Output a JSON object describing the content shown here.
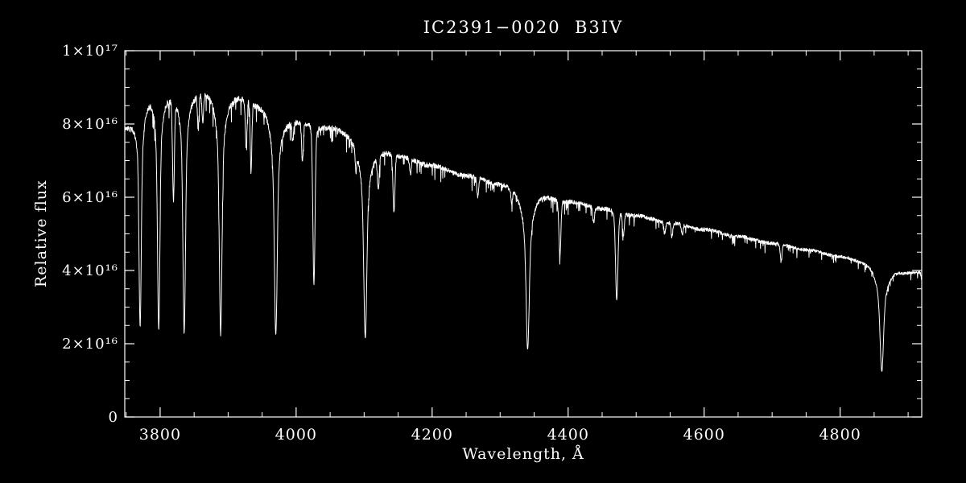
{
  "page": {
    "background": "#000000",
    "foreground": "#ffffff"
  },
  "chart_data": {
    "type": "line",
    "title": "IC2391−0020  B3IV",
    "xlabel": "Wavelength, Å",
    "ylabel": "Relative flux",
    "xlim": [
      3748,
      4920
    ],
    "ylim": [
      0,
      1e+17
    ],
    "grid": false,
    "legend": "none",
    "background": "#000000",
    "axis_color": "#ffffff",
    "line_color": "#ffffff",
    "x_ticks": [
      {
        "value": 3800,
        "label": "3800"
      },
      {
        "value": 4000,
        "label": "4000"
      },
      {
        "value": 4200,
        "label": "4200"
      },
      {
        "value": 4400,
        "label": "4400"
      },
      {
        "value": 4600,
        "label": "4600"
      },
      {
        "value": 4800,
        "label": "4800"
      }
    ],
    "x_minor_step": 50,
    "y_ticks": [
      {
        "value": 0,
        "label": "0"
      },
      {
        "value": 2e+16,
        "label": "2×10¹⁶"
      },
      {
        "value": 4e+16,
        "label": "4×10¹⁶"
      },
      {
        "value": 6e+16,
        "label": "6×10¹⁶"
      },
      {
        "value": 8e+16,
        "label": "8×10¹⁶"
      },
      {
        "value": 1e+17,
        "label": "1×10¹⁷"
      }
    ],
    "y_minor_step": 5000000000000000.0,
    "continuum": [
      [
        3748,
        8e+16
      ],
      [
        3790,
        9e+16
      ],
      [
        3830,
        9e+16
      ],
      [
        3870,
        9e+16
      ],
      [
        3910,
        8.85e+16
      ],
      [
        3950,
        8.6e+16
      ],
      [
        4000,
        8.15e+16
      ],
      [
        4050,
        7.95e+16
      ],
      [
        4130,
        7.3e+16
      ],
      [
        4150,
        7.15e+16
      ],
      [
        4200,
        6.88e+16
      ],
      [
        4250,
        6.6e+16
      ],
      [
        4300,
        6.4e+16
      ],
      [
        4350,
        6.18e+16
      ],
      [
        4400,
        5.9e+16
      ],
      [
        4450,
        5.7e+16
      ],
      [
        4500,
        5.5e+16
      ],
      [
        4550,
        5.3e+16
      ],
      [
        4600,
        5.12e+16
      ],
      [
        4650,
        4.93e+16
      ],
      [
        4700,
        4.75e+16
      ],
      [
        4750,
        4.57e+16
      ],
      [
        4800,
        4.4e+16
      ],
      [
        4840,
        4.28e+16
      ],
      [
        4875,
        4.08e+16
      ],
      [
        4900,
        3.98e+16
      ],
      [
        4920,
        3.97e+16
      ]
    ],
    "absorption_lines": [
      {
        "wl": 3770.6,
        "core": 0.48,
        "core_w": 1.5,
        "broad": 0.22,
        "broad_w": 5
      },
      {
        "wl": 3797.9,
        "core": 0.49,
        "core_w": 1.6,
        "broad": 0.23,
        "broad_w": 5
      },
      {
        "wl": 3819.6,
        "core": 0.26,
        "core_w": 1.3,
        "broad": 0.04,
        "broad_w": 2
      },
      {
        "wl": 3835.4,
        "core": 0.49,
        "core_w": 1.7,
        "broad": 0.24,
        "broad_w": 5.5
      },
      {
        "wl": 3856.0,
        "core": 0.1,
        "core_w": 1.1,
        "broad": 0,
        "broad_w": 1
      },
      {
        "wl": 3862.6,
        "core": 0.08,
        "core_w": 1.1,
        "broad": 0,
        "broad_w": 1
      },
      {
        "wl": 3889.0,
        "core": 0.49,
        "core_w": 1.8,
        "broad": 0.25,
        "broad_w": 6
      },
      {
        "wl": 3926.5,
        "core": 0.15,
        "core_w": 1.2,
        "broad": 0,
        "broad_w": 1
      },
      {
        "wl": 3933.7,
        "core": 0.22,
        "core_w": 1.1,
        "broad": 0,
        "broad_w": 1
      },
      {
        "wl": 3970.1,
        "core": 0.47,
        "core_w": 1.9,
        "broad": 0.26,
        "broad_w": 6.5
      },
      {
        "wl": 3995.0,
        "core": 0.06,
        "core_w": 1.1,
        "broad": 0,
        "broad_w": 1
      },
      {
        "wl": 4009.3,
        "core": 0.13,
        "core_w": 1.3,
        "broad": 0,
        "broad_w": 1
      },
      {
        "wl": 4026.2,
        "core": 0.46,
        "core_w": 1.6,
        "broad": 0.08,
        "broad_w": 2.5
      },
      {
        "wl": 4088.0,
        "core": 0.07,
        "core_w": 1.1,
        "broad": 0,
        "broad_w": 1
      },
      {
        "wl": 4101.7,
        "core": 0.45,
        "core_w": 2.0,
        "broad": 0.26,
        "broad_w": 7
      },
      {
        "wl": 4120.8,
        "core": 0.12,
        "core_w": 1.4,
        "broad": 0,
        "broad_w": 1
      },
      {
        "wl": 4143.8,
        "core": 0.21,
        "core_w": 1.4,
        "broad": 0,
        "broad_w": 1
      },
      {
        "wl": 4168.0,
        "core": 0.06,
        "core_w": 1.2,
        "broad": 0,
        "broad_w": 1
      },
      {
        "wl": 4267.0,
        "core": 0.08,
        "core_w": 1.2,
        "broad": 0,
        "broad_w": 1
      },
      {
        "wl": 4317.0,
        "core": 0.05,
        "core_w": 1.2,
        "broad": 0,
        "broad_w": 1
      },
      {
        "wl": 4340.5,
        "core": 0.43,
        "core_w": 2.1,
        "broad": 0.27,
        "broad_w": 7.5
      },
      {
        "wl": 4387.9,
        "core": 0.25,
        "core_w": 1.5,
        "broad": 0,
        "broad_w": 1
      },
      {
        "wl": 4437.6,
        "core": 0.07,
        "core_w": 1.2,
        "broad": 0,
        "broad_w": 1
      },
      {
        "wl": 4471.5,
        "core": 0.37,
        "core_w": 1.7,
        "broad": 0.06,
        "broad_w": 2.5
      },
      {
        "wl": 4481.2,
        "core": 0.11,
        "core_w": 1.2,
        "broad": 0,
        "broad_w": 1
      },
      {
        "wl": 4542.0,
        "core": 0.05,
        "core_w": 1.3,
        "broad": 0,
        "broad_w": 1
      },
      {
        "wl": 4552.6,
        "core": 0.07,
        "core_w": 1.2,
        "broad": 0,
        "broad_w": 1
      },
      {
        "wl": 4567.8,
        "core": 0.05,
        "core_w": 1.2,
        "broad": 0,
        "broad_w": 1
      },
      {
        "wl": 4713.2,
        "core": 0.1,
        "core_w": 1.3,
        "broad": 0,
        "broad_w": 1
      },
      {
        "wl": 4861.3,
        "core": 0.42,
        "core_w": 2.3,
        "broad": 0.28,
        "broad_w": 8.5
      },
      {
        "wl": 4921.9,
        "core": 0.15,
        "core_w": 1.5,
        "broad": 0,
        "broad_w": 1
      }
    ],
    "noise": {
      "seed": 987654321,
      "amp": 0.01,
      "dip_prob": 0.06,
      "dip_amp": 0.055
    },
    "sample_step_angstrom": 0.35
  }
}
